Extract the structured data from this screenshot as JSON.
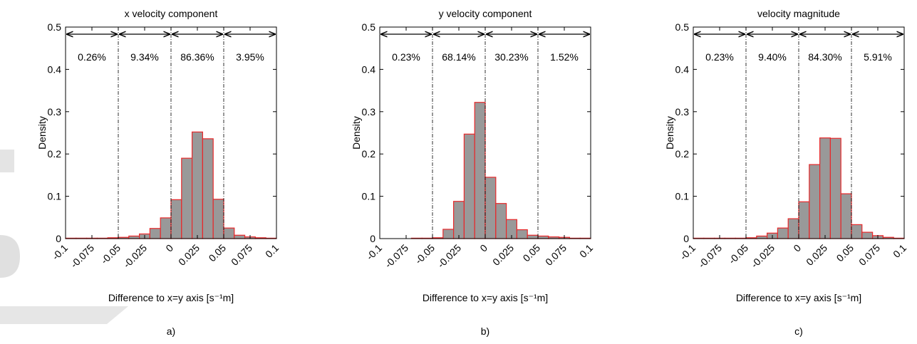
{
  "chart_data": [
    {
      "type": "histogram",
      "title": "x velocity component",
      "ylabel": "Density",
      "xlabel": "Difference to x=y axis [s⁻¹m]",
      "caption": "a)",
      "bins": [
        -0.1,
        -0.09,
        -0.08,
        -0.07,
        -0.06,
        -0.05,
        -0.04,
        -0.03,
        -0.02,
        -0.01,
        0,
        0.01,
        0.02,
        0.03,
        0.04,
        0.05,
        0.06,
        0.07,
        0.08,
        0.09,
        0.1
      ],
      "values": [
        0.001,
        0.001,
        0.001,
        0.001,
        0.002,
        0.003,
        0.006,
        0.011,
        0.024,
        0.049,
        0.092,
        0.19,
        0.252,
        0.236,
        0.093,
        0.025,
        0.008,
        0.004,
        0.002,
        0.001
      ],
      "color": "#999999",
      "edge_color": "#e8282a",
      "xlim": [
        -0.1,
        0.1
      ],
      "xticks": [
        -0.1,
        -0.075,
        -0.05,
        -0.025,
        0,
        0.025,
        0.05,
        0.075,
        0.1
      ],
      "ylim": [
        0,
        0.5
      ],
      "yticks": [
        0,
        0.1,
        0.2,
        0.3,
        0.4,
        0.5
      ],
      "annotations": [
        {
          "text": "0.26%",
          "from": -0.1,
          "to": -0.05
        },
        {
          "text": "9.34%",
          "from": -0.05,
          "to": 0
        },
        {
          "text": "86.36%",
          "from": 0,
          "to": 0.05
        },
        {
          "text": "3.95%",
          "from": 0.05,
          "to": 0.1
        }
      ]
    },
    {
      "type": "histogram",
      "title": "y velocity component",
      "ylabel": "Density",
      "xlabel": "Difference to x=y axis [s⁻¹m]",
      "caption": "b)",
      "bins": [
        -0.1,
        -0.09,
        -0.08,
        -0.07,
        -0.06,
        -0.05,
        -0.04,
        -0.03,
        -0.02,
        -0.01,
        0,
        0.01,
        0.02,
        0.03,
        0.04,
        0.05,
        0.06,
        0.07,
        0.08,
        0.09,
        0.1
      ],
      "values": [
        0,
        0,
        0,
        0.001,
        0.001,
        0.002,
        0.022,
        0.088,
        0.247,
        0.322,
        0.145,
        0.083,
        0.045,
        0.021,
        0.008,
        0.006,
        0.004,
        0.003,
        0.001,
        0.001
      ],
      "color": "#999999",
      "edge_color": "#e8282a",
      "xlim": [
        -0.1,
        0.1
      ],
      "xticks": [
        -0.1,
        -0.075,
        -0.05,
        -0.025,
        0,
        0.025,
        0.05,
        0.075,
        0.1
      ],
      "ylim": [
        0,
        0.5
      ],
      "yticks": [
        0,
        0.1,
        0.2,
        0.3,
        0.4,
        0.5
      ],
      "annotations": [
        {
          "text": "0.23%",
          "from": -0.1,
          "to": -0.05
        },
        {
          "text": "68.14%",
          "from": -0.05,
          "to": 0
        },
        {
          "text": "30.23%",
          "from": 0,
          "to": 0.05
        },
        {
          "text": "1.52%",
          "from": 0.05,
          "to": 0.1
        }
      ]
    },
    {
      "type": "histogram",
      "title": "velocity magnitude",
      "ylabel": "Density",
      "xlabel": "Difference to x=y axis [s⁻¹m]",
      "caption": "c)",
      "bins": [
        -0.1,
        -0.09,
        -0.08,
        -0.07,
        -0.06,
        -0.05,
        -0.04,
        -0.03,
        -0.02,
        -0.01,
        0,
        0.01,
        0.02,
        0.03,
        0.04,
        0.05,
        0.06,
        0.07,
        0.08,
        0.09,
        0.1
      ],
      "values": [
        0.001,
        0.001,
        0.001,
        0.001,
        0.001,
        0.002,
        0.006,
        0.013,
        0.025,
        0.047,
        0.087,
        0.175,
        0.238,
        0.237,
        0.106,
        0.033,
        0.015,
        0.007,
        0.003,
        0.001
      ],
      "color": "#999999",
      "edge_color": "#e8282a",
      "xlim": [
        -0.1,
        0.1
      ],
      "xticks": [
        -0.1,
        -0.075,
        -0.05,
        -0.025,
        0,
        0.025,
        0.05,
        0.075,
        0.1
      ],
      "ylim": [
        0,
        0.5
      ],
      "yticks": [
        0,
        0.1,
        0.2,
        0.3,
        0.4,
        0.5
      ],
      "annotations": [
        {
          "text": "0.23%",
          "from": -0.1,
          "to": -0.05
        },
        {
          "text": "9.40%",
          "from": -0.05,
          "to": 0
        },
        {
          "text": "84.30%",
          "from": 0,
          "to": 0.05
        },
        {
          "text": "5.91%",
          "from": 0.05,
          "to": 0.1
        }
      ]
    }
  ]
}
